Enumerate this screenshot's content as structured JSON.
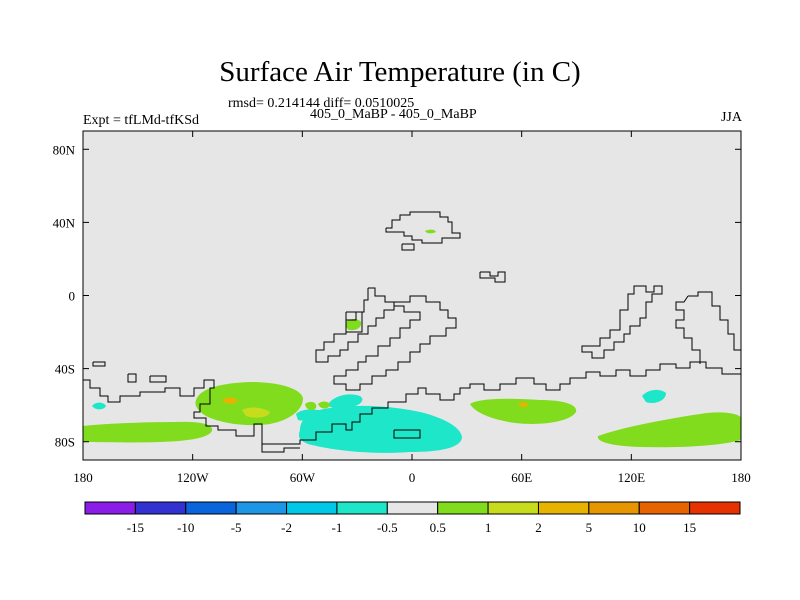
{
  "header": {
    "title": "Surface Air Temperature (in C)",
    "stats": "rmsd= 0.214144 diff= 0.0510025",
    "subtitle": "405_0_MaBP - 405_0_MaBP",
    "experiment": "Expt = tfLMd-tfKSd",
    "season": "JJA"
  },
  "map": {
    "lon_range": [
      -180,
      180
    ],
    "lat_range": [
      -90,
      90
    ],
    "x_ticks": [
      {
        "lon": -180,
        "label": "180"
      },
      {
        "lon": -120,
        "label": "120W"
      },
      {
        "lon": -60,
        "label": "60W"
      },
      {
        "lon": 0,
        "label": "0"
      },
      {
        "lon": 60,
        "label": "60E"
      },
      {
        "lon": 120,
        "label": "120E"
      },
      {
        "lon": 180,
        "label": "180"
      }
    ],
    "y_ticks": [
      {
        "lat": 80,
        "label": "80N"
      },
      {
        "lat": 40,
        "label": "40N"
      },
      {
        "lat": 0,
        "label": "0"
      },
      {
        "lat": -40,
        "label": "40S"
      },
      {
        "lat": -80,
        "label": "80S"
      }
    ],
    "background_color": "#e6e6e6"
  },
  "colorbar": {
    "colors": [
      "#8a1ee6",
      "#3232d2",
      "#0a64dc",
      "#1e96e6",
      "#00c8e6",
      "#1ee6c8",
      "#e6e6e6",
      "#82dc1e",
      "#c8dc1e",
      "#e6b400",
      "#e69600",
      "#e66400",
      "#e63200"
    ],
    "labels": [
      "-15",
      "-10",
      "-5",
      "-2",
      "-1",
      "-0.5",
      "0.5",
      "1",
      "2",
      "5",
      "10",
      "15"
    ]
  }
}
